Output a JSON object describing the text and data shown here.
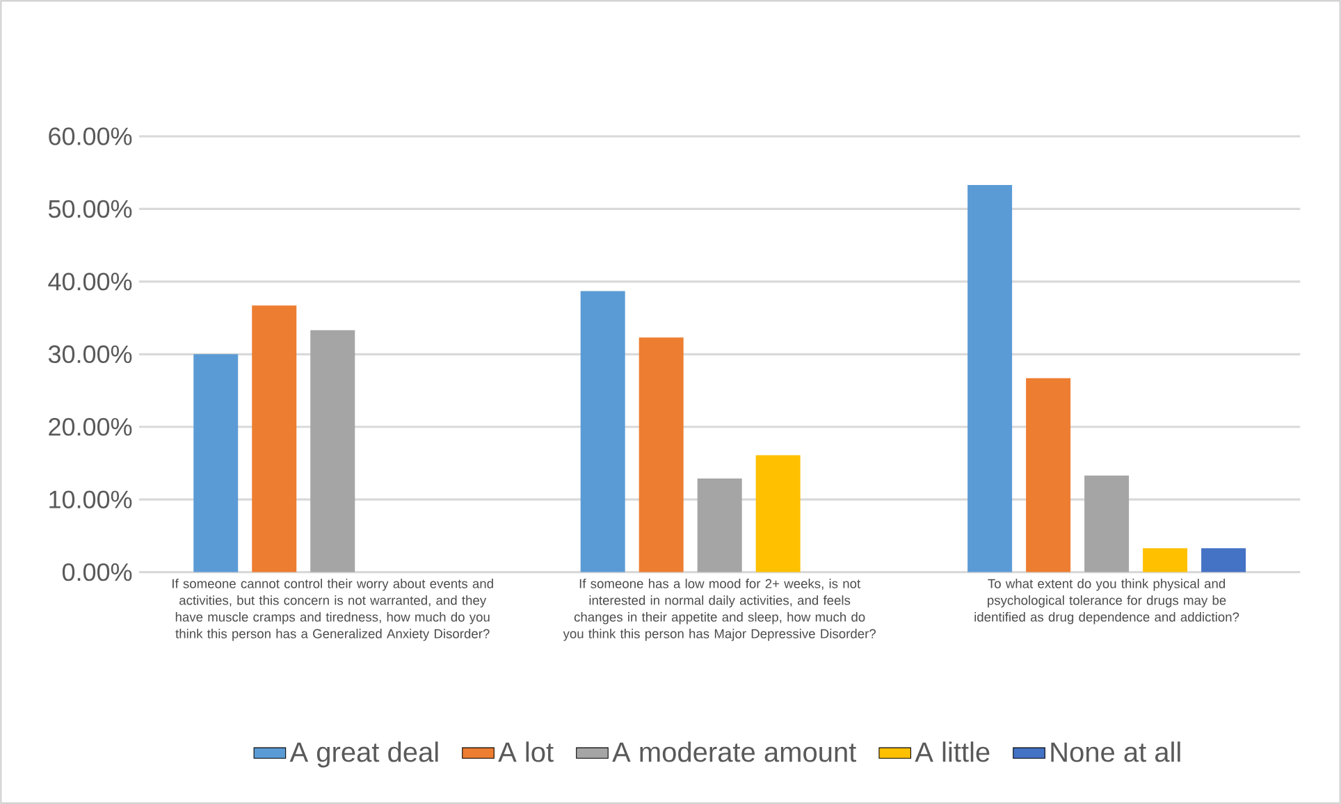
{
  "chart_data": {
    "type": "bar",
    "categories": [
      "If someone cannot control their worry about events and activities, but this concern is not warranted, and they have muscle cramps and tiredness, how much do you think this person has a Generalized Anxiety Disorder?",
      "If someone has a low mood for 2+ weeks, is not interested in normal daily activities, and feels changes in their appetite and sleep, how much do you think this person has Major Depressive Disorder?",
      "To what extent do you think physical and psychological tolerance for drugs may be identified as drug dependence and addiction?"
    ],
    "series": [
      {
        "name": "A great deal",
        "color": "#5b9bd5",
        "values": [
          30.0,
          38.7,
          53.3
        ]
      },
      {
        "name": "A lot",
        "color": "#ed7d31",
        "values": [
          36.7,
          32.3,
          26.7
        ]
      },
      {
        "name": "A moderate amount",
        "color": "#a5a5a5",
        "values": [
          33.3,
          12.9,
          13.3
        ]
      },
      {
        "name": "A little",
        "color": "#ffc000",
        "values": [
          null,
          16.1,
          3.3
        ]
      },
      {
        "name": "None at all",
        "color": "#4472c4",
        "values": [
          null,
          null,
          3.3
        ]
      }
    ],
    "ylim": [
      0,
      60
    ],
    "yticks": [
      {
        "value": 0,
        "label": "0.00%"
      },
      {
        "value": 10,
        "label": "10.00%"
      },
      {
        "value": 20,
        "label": "20.00%"
      },
      {
        "value": 30,
        "label": "30.00%"
      },
      {
        "value": 40,
        "label": "40.00%"
      },
      {
        "value": 50,
        "label": "50.00%"
      },
      {
        "value": 60,
        "label": "60.00%"
      }
    ],
    "grid": "y",
    "legend": "bottom"
  }
}
